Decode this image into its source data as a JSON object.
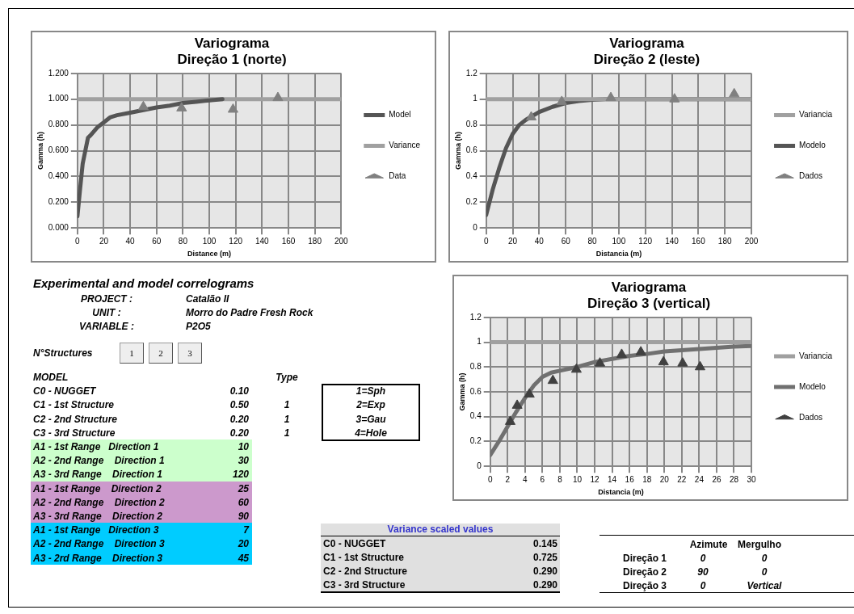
{
  "chart_data": [
    {
      "type": "line",
      "title": "Variograma",
      "subtitle": "Direção 1 (norte)",
      "xlabel": "Distance (m)",
      "ylabel": "Gamma (h)",
      "xlim": [
        0,
        200
      ],
      "xticks": [
        0,
        20,
        40,
        60,
        80,
        100,
        120,
        140,
        160,
        180,
        200
      ],
      "ylim": [
        0,
        1.2
      ],
      "yticks": [
        {
          "value": 0,
          "label": "0.000"
        },
        {
          "value": 0.2,
          "label": "0.200"
        },
        {
          "value": 0.4,
          "label": "0.400"
        },
        {
          "value": 0.6,
          "label": "0.600"
        },
        {
          "value": 0.8,
          "label": "0.800"
        },
        {
          "value": 1,
          "label": "1.000"
        },
        {
          "value": 1.2,
          "label": "1.200"
        }
      ],
      "grid": true,
      "legend": "right",
      "series": [
        {
          "name": "Model",
          "color": "#555555",
          "x": [
            0,
            2,
            4,
            6,
            8,
            10,
            15,
            20,
            25,
            30,
            40,
            50,
            60,
            70,
            80,
            90,
            100,
            110
          ],
          "values": [
            0.09,
            0.3,
            0.5,
            0.6,
            0.7,
            0.72,
            0.78,
            0.82,
            0.86,
            0.875,
            0.895,
            0.915,
            0.935,
            0.95,
            0.97,
            0.98,
            0.99,
            1.0
          ],
          "marker": "none"
        },
        {
          "name": "Variance",
          "color": "#a0a0a0",
          "x": [
            0,
            200
          ],
          "values": [
            1,
            1
          ],
          "marker": "none"
        },
        {
          "name": "Data",
          "type": "scatter",
          "color": "#808080",
          "x": [
            50,
            79,
            118,
            152
          ],
          "values": [
            0.94,
            0.93,
            0.92,
            1.01
          ],
          "marker": "triangle"
        }
      ]
    },
    {
      "type": "line",
      "title": "Variograma",
      "subtitle": "Direção 2 (leste)",
      "xlabel": "Distancia (m)",
      "ylabel": "Gamma (h)",
      "xlim": [
        0,
        200
      ],
      "xticks": [
        0,
        20,
        40,
        60,
        80,
        100,
        120,
        140,
        160,
        180,
        200
      ],
      "ylim": [
        0,
        1.2
      ],
      "yticks": [
        0,
        0.2,
        0.4,
        0.6,
        0.8,
        1,
        1.2
      ],
      "grid": true,
      "legend": "right",
      "series": [
        {
          "name": "Variancia",
          "color": "#a0a0a0",
          "x": [
            0,
            200
          ],
          "values": [
            1,
            1
          ],
          "marker": "none"
        },
        {
          "name": "Modelo",
          "color": "#555555",
          "x": [
            0,
            5,
            10,
            15,
            20,
            25,
            30,
            40,
            50,
            60,
            70,
            80,
            90,
            200
          ],
          "values": [
            0.1,
            0.3,
            0.47,
            0.62,
            0.73,
            0.8,
            0.84,
            0.9,
            0.94,
            0.97,
            0.985,
            0.995,
            1,
            1
          ],
          "marker": "none"
        },
        {
          "name": "Dados",
          "type": "scatter",
          "color": "#808080",
          "x": [
            34,
            57,
            94,
            142,
            187
          ],
          "values": [
            0.86,
            0.98,
            1.01,
            1.0,
            1.04
          ],
          "marker": "triangle"
        }
      ]
    },
    {
      "type": "line",
      "title": "Variograma",
      "subtitle": "Direção 3 (vertical)",
      "xlabel": "Distancia (m)",
      "ylabel": "Gamma (h)",
      "xlim": [
        0,
        30
      ],
      "xticks": [
        0,
        2,
        4,
        6,
        8,
        10,
        12,
        14,
        16,
        18,
        20,
        22,
        24,
        26,
        28,
        30
      ],
      "ylim": [
        0,
        1.2
      ],
      "yticks": [
        0,
        0.2,
        0.4,
        0.6,
        0.8,
        1,
        1.2
      ],
      "grid": true,
      "legend": "right",
      "series": [
        {
          "name": "Variancia",
          "color": "#a0a0a0",
          "x": [
            0,
            30
          ],
          "values": [
            1,
            1
          ],
          "marker": "none"
        },
        {
          "name": "Modelo",
          "color": "#707070",
          "x": [
            0,
            1,
            2,
            3,
            4,
            5,
            6,
            7,
            8,
            10,
            12,
            14,
            16,
            18,
            20,
            22,
            24,
            26,
            28,
            30
          ],
          "values": [
            0.09,
            0.2,
            0.32,
            0.44,
            0.55,
            0.65,
            0.72,
            0.755,
            0.77,
            0.8,
            0.84,
            0.865,
            0.89,
            0.905,
            0.925,
            0.935,
            0.945,
            0.955,
            0.965,
            0.97
          ],
          "marker": "none"
        },
        {
          "name": "Dados",
          "type": "scatter",
          "color": "#404040",
          "x": [
            2.3,
            3.1,
            4.5,
            7.2,
            9.9,
            12.6,
            15.1,
            17.3,
            19.9,
            22.1,
            24.1
          ],
          "values": [
            0.36,
            0.49,
            0.58,
            0.69,
            0.78,
            0.83,
            0.9,
            0.92,
            0.84,
            0.83,
            0.8
          ],
          "marker": "triangle"
        }
      ]
    },
    {
      "type": "other",
      "title": "Experimental and model correlograms",
      "annotations": [
        "PROJECT :",
        "Catalão II",
        "UNIT :",
        "Morro do Padre Fresh Rock",
        "VARIABLE :",
        "P2O5",
        "N°Structures",
        "1",
        "2",
        "3"
      ]
    },
    {
      "type": "other",
      "annotations": [
        "MODEL",
        "Type",
        "C0 - NUGGET",
        "0.10",
        "C1 - 1st Structure",
        "0.50",
        "1",
        "C2 - 2nd Structure",
        "0.20",
        "1",
        "C3 - 3rd Structure",
        "0.20",
        "1",
        "A1 - 1st Range   Direction 1",
        "10",
        "A2 - 2nd Range    Direction 1",
        "30",
        "A3 - 3rd Range    Direction 1",
        "120",
        "A1 - 1st Range    Direction 2",
        "25",
        "A2 - 2nd Range    Direction 2",
        "60",
        "A3 - 3rd Range    Direction 2",
        "90",
        "A1 - 1st Range   Direction 3",
        "7",
        "A2 - 2nd Range    Direction 3",
        "20",
        "A3 - 2rd Range    Direction 3",
        "45",
        "1=Sph",
        "2=Exp",
        "3=Gau",
        "4=Hole"
      ]
    },
    {
      "type": "other",
      "title": "Variance scaled values",
      "annotations": [
        "C0 - NUGGET",
        "0.145",
        "C1 - 1st Structure",
        "0.725",
        "C2 - 2nd Structure",
        "0.290",
        "C3 - 3rd Structure",
        "0.290"
      ]
    },
    {
      "type": "other",
      "annotations": [
        "Azimute",
        "Mergulho",
        "Direção 1",
        "0",
        "0",
        "Direção 2",
        "90",
        "0",
        "Direção 3",
        "0",
        "Vertical"
      ]
    }
  ]
}
